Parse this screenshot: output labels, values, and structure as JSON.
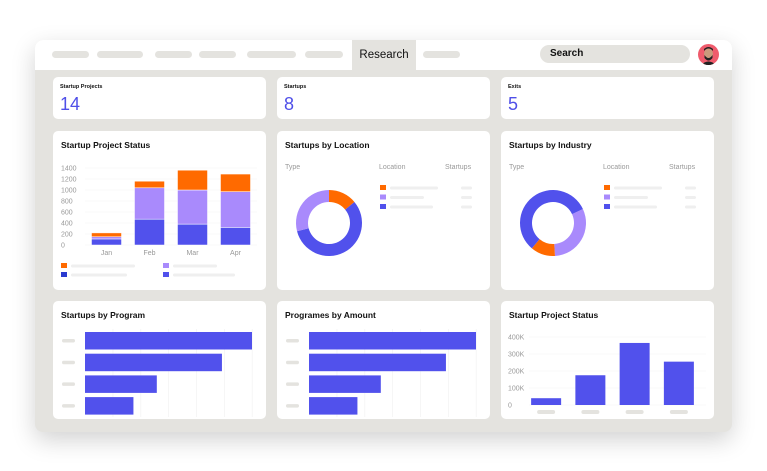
{
  "nav": {
    "active_tab": "Research",
    "search_label": "Search",
    "avatar": "user-avatar"
  },
  "kpis": [
    {
      "label": "Startup Projects",
      "value": "14"
    },
    {
      "label": "Startups",
      "value": "8"
    },
    {
      "label": "Exits",
      "value": "5"
    }
  ],
  "colors": {
    "orange": "#ff6a00",
    "lavender": "#a98afc",
    "blue": "#5151ec",
    "dark_blue": "#2a3bd0",
    "bg": "#e4e3df"
  },
  "donut_headers": {
    "type": "Type",
    "location": "Location",
    "startups": "Startups"
  },
  "chart_data": [
    {
      "type": "bar",
      "stacked": true,
      "title": "Startup Project Status",
      "categories": [
        "Jan",
        "Feb",
        "Mar",
        "Apr"
      ],
      "yticks": [
        "0",
        "200",
        "400",
        "600",
        "800",
        "1000",
        "1200",
        "1400"
      ],
      "ylim": [
        0,
        1400
      ],
      "series": [
        {
          "color": "#5151ec",
          "values": [
            110,
            470,
            380,
            320
          ]
        },
        {
          "color": "#a98afc",
          "values": [
            40,
            570,
            620,
            650
          ]
        },
        {
          "color": "#ff6a00",
          "values": [
            70,
            120,
            360,
            320
          ]
        }
      ]
    },
    {
      "type": "pie",
      "donut": true,
      "title": "Startups by Location",
      "values": [
        14,
        57,
        29
      ],
      "colors": [
        "#ff6a00",
        "#5151ec",
        "#a98afc"
      ]
    },
    {
      "type": "pie",
      "donut": true,
      "title": "Startups by Industry",
      "values": [
        31,
        12,
        57
      ],
      "colors": [
        "#a98afc",
        "#ff6a00",
        "#5151ec"
      ],
      "start_deg": 65
    },
    {
      "type": "bar",
      "orientation": "horizontal",
      "title": "Startups by Program",
      "values": [
        100,
        82,
        43,
        29
      ]
    },
    {
      "type": "bar",
      "orientation": "horizontal",
      "title": "Programes by Amount",
      "values": [
        100,
        82,
        43,
        29
      ]
    },
    {
      "type": "bar",
      "title": "Startup Project Status",
      "values": [
        40000,
        175000,
        365000,
        255000
      ],
      "yticks": [
        "0",
        "100K",
        "200K",
        "300K",
        "400K"
      ],
      "ylim": [
        0,
        400000
      ]
    }
  ]
}
